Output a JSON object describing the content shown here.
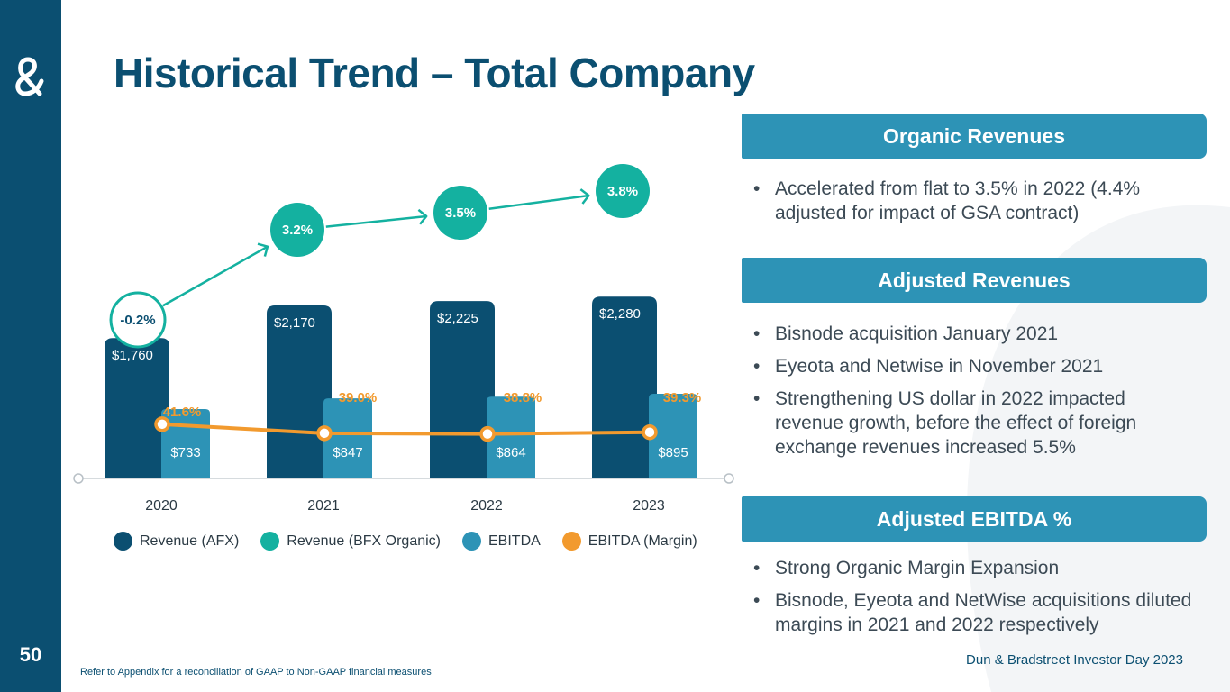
{
  "slide": {
    "title": "Historical Trend – Total Company",
    "page_number": "50",
    "footnote": "Refer to Appendix for a reconciliation of GAAP to Non-GAAP financial measures",
    "footer_brand": "Dun & Bradstreet Investor Day 2023"
  },
  "colors": {
    "navy": "#0b4f71",
    "teal": "#14b1a0",
    "ebitda": "#2d93b6",
    "orange": "#f29a2e"
  },
  "panels": [
    {
      "header": "Organic Revenues",
      "bullets": [
        "Accelerated from flat to 3.5% in 2022 (4.4% adjusted for impact of GSA contract)"
      ]
    },
    {
      "header": "Adjusted Revenues",
      "bullets": [
        "Bisnode acquisition January 2021",
        "Eyeota and Netwise in November 2021",
        "Strengthening US dollar in 2022 impacted revenue growth, before the effect of foreign exchange revenues increased 5.5%"
      ]
    },
    {
      "header": "Adjusted EBITDA %",
      "bullets": [
        "Strong Organic Margin Expansion",
        "Bisnode, Eyeota and NetWise acquisitions diluted margins in 2021 and 2022 respectively"
      ]
    }
  ],
  "chart_data": {
    "type": "bar",
    "categories": [
      "2020",
      "2021",
      "2022",
      "2023"
    ],
    "series": [
      {
        "name": "Revenue (AFX)",
        "kind": "bar",
        "values": [
          1760,
          2170,
          2225,
          2280
        ],
        "labels": [
          "$1,760",
          "$2,170",
          "$2,225",
          "$2,280"
        ]
      },
      {
        "name": "EBITDA",
        "kind": "bar",
        "values": [
          733,
          847,
          864,
          895
        ],
        "labels": [
          "$733",
          "$847",
          "$864",
          "$895"
        ]
      },
      {
        "name": "EBITDA (Margin)",
        "kind": "line",
        "values": [
          41.6,
          39.0,
          38.8,
          39.3
        ],
        "labels": [
          "41.6%",
          "39.0%",
          "38.8%",
          "39.3%"
        ]
      },
      {
        "name": "Revenue (BFX Organic)",
        "kind": "growth",
        "values": [
          -0.2,
          3.2,
          3.5,
          3.8
        ],
        "labels": [
          "-0.2%",
          "3.2%",
          "3.5%",
          "3.8%"
        ]
      }
    ],
    "legend": [
      "Revenue (AFX)",
      "Revenue (BFX Organic)",
      "EBITDA",
      "EBITDA (Margin)"
    ],
    "ylim": [
      0,
      2400
    ]
  }
}
